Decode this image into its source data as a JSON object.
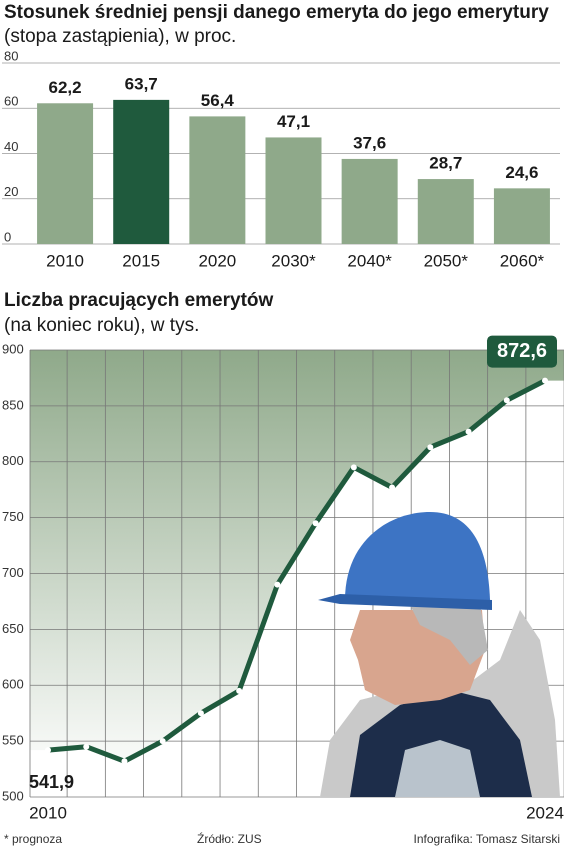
{
  "chart_data": [
    {
      "type": "bar",
      "title": "Stosunek średniej pensji danego emeryta do jego emerytury",
      "subtitle": "(stopa zastąpienia), w proc.",
      "categories": [
        "2010",
        "2015",
        "2020",
        "2030*",
        "2040*",
        "2050*",
        "2060*"
      ],
      "values": [
        62.2,
        63.7,
        56.4,
        47.1,
        37.6,
        28.7,
        24.6
      ],
      "value_labels": [
        "62,2",
        "63,7",
        "56,4",
        "47,1",
        "37,6",
        "28,7",
        "24,6"
      ],
      "colors": [
        "#8fa98a",
        "#1f5a3d",
        "#8fa98a",
        "#8fa98a",
        "#8fa98a",
        "#8fa98a",
        "#8fa98a"
      ],
      "ylim": [
        0,
        80
      ],
      "yticks": [
        0,
        20,
        40,
        60,
        80
      ],
      "grid": true
    },
    {
      "type": "line",
      "title": "Liczba pracujących emerytów",
      "subtitle": "(na koniec roku), w tys.",
      "categories": [
        "2010",
        null,
        null,
        null,
        null,
        null,
        null,
        null,
        null,
        null,
        null,
        null,
        null,
        "2024"
      ],
      "values": [
        541.9,
        545,
        532,
        550,
        575,
        595,
        690,
        745,
        795,
        777,
        813,
        827,
        855,
        872.6
      ],
      "value_labels": [
        "541,9",
        null,
        null,
        null,
        null,
        null,
        null,
        null,
        null,
        null,
        null,
        null,
        null,
        "872,6"
      ],
      "color": "#1f5a3d",
      "ylim": [
        500,
        900
      ],
      "yticks": [
        500,
        550,
        600,
        650,
        700,
        750,
        800,
        850,
        900
      ],
      "grid": true
    }
  ],
  "footer": {
    "note": "* prognoza",
    "source": "Źródło: ZUS",
    "credit": "Infografika: Tomasz Sitarski"
  }
}
